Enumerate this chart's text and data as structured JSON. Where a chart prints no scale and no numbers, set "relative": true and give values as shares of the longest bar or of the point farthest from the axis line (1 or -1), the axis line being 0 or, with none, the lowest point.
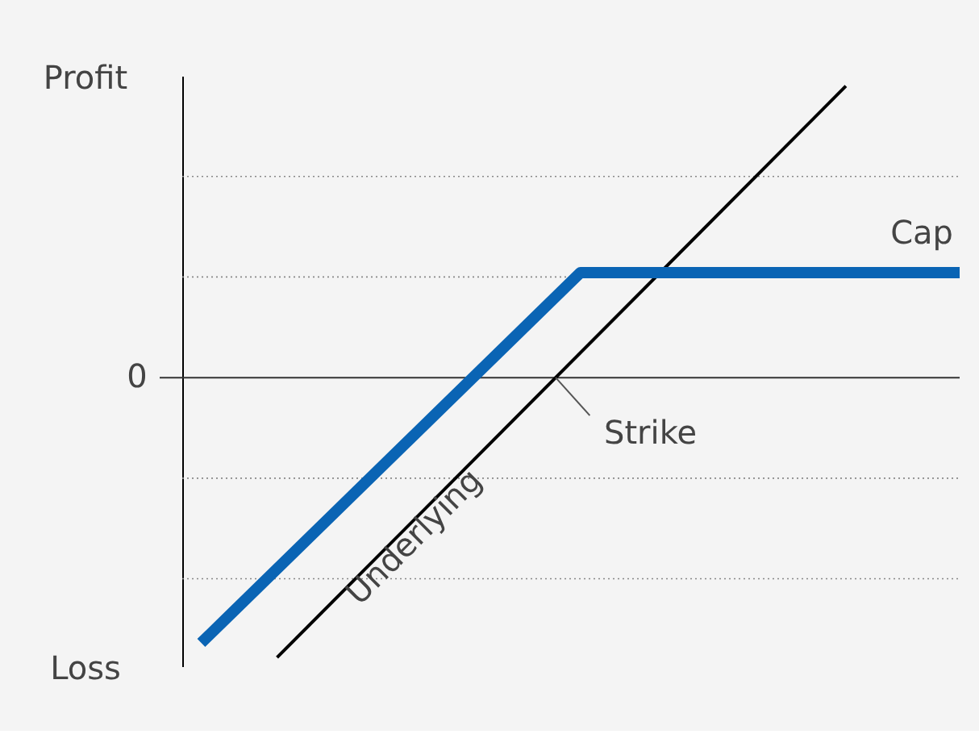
{
  "chart_data": {
    "type": "line",
    "relative": true,
    "grid": "y",
    "line_style": "solid",
    "marker": "none",
    "categories": [
      null,
      null,
      null,
      null,
      null,
      null,
      null,
      null,
      null,
      null,
      null,
      null,
      null,
      null,
      null,
      null,
      null,
      null,
      null,
      null,
      null
    ],
    "series": [
      {
        "name": "Underlying",
        "color": "#000000",
        "values": [
          null,
          null,
          -0.96,
          null,
          null,
          null,
          null,
          null,
          null,
          null,
          null,
          null,
          null,
          null,
          null,
          null,
          null,
          1.0,
          null,
          null,
          null
        ]
      },
      {
        "name": "Cap",
        "color": "#0a64b4",
        "values": [
          -0.91,
          null,
          null,
          null,
          null,
          null,
          null,
          null,
          null,
          null,
          0.36,
          null,
          null,
          null,
          null,
          null,
          null,
          null,
          null,
          null,
          0.36
        ]
      }
    ],
    "annotations": [
      "Profit",
      "Loss",
      "0",
      "Strike"
    ]
  }
}
